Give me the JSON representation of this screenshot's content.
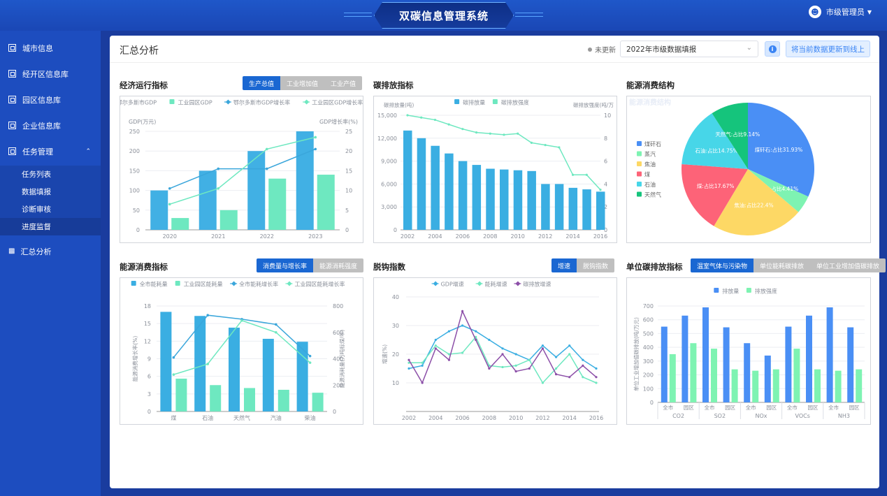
{
  "app": {
    "title": "双碳信息管理系统",
    "user": "市级管理员"
  },
  "sidebar": {
    "items": [
      {
        "label": "城市信息"
      },
      {
        "label": "经开区信息库"
      },
      {
        "label": "园区信息库"
      },
      {
        "label": "企业信息库"
      },
      {
        "label": "任务管理"
      },
      {
        "label": "汇总分析"
      }
    ],
    "subitems": [
      {
        "label": "任务列表"
      },
      {
        "label": "数据填报"
      },
      {
        "label": "诊断审核"
      },
      {
        "label": "进度监督"
      }
    ]
  },
  "header": {
    "title": "汇总分析",
    "status": "未更新",
    "select_value": "2022年市级数据填报",
    "sync_button": "将当前数据更新到线上",
    "info_icon": "info-icon"
  },
  "sections": {
    "economy": {
      "title": "经济运行指标",
      "tabs": [
        "生产总值",
        "工业增加值",
        "工业产值"
      ]
    },
    "carbon": {
      "title": "碳排放指标"
    },
    "structure": {
      "title": "能源消费结构"
    },
    "energy": {
      "title": "能源消费指标",
      "tabs": [
        "消费量与增长率",
        "能源消耗强度"
      ]
    },
    "decoupling": {
      "title": "脱钩指数",
      "tabs": [
        "增速",
        "脱钩指数"
      ]
    },
    "unit_emission": {
      "title": "单位碳排放指标",
      "tabs": [
        "温室气体与污染物",
        "单位能耗碳排放",
        "单位工业增加值碳排放"
      ]
    }
  },
  "chart_data": [
    {
      "id": "economy",
      "type": "bar",
      "categories": [
        "2020",
        "2021",
        "2022",
        "2023"
      ],
      "series": [
        {
          "name": "鄂尔多斯市GDP",
          "kind": "bar",
          "axis": "left",
          "color": "#41b0e4",
          "values": [
            100,
            150,
            200,
            250
          ]
        },
        {
          "name": "工业园区GDP",
          "kind": "bar",
          "axis": "left",
          "color": "#6ee8c0",
          "values": [
            30,
            50,
            130,
            140
          ]
        },
        {
          "name": "鄂尔多斯市GDP增长率",
          "kind": "line",
          "axis": "right",
          "color": "#3aa6db",
          "values": [
            10.5,
            15.5,
            15.5,
            20.5
          ]
        },
        {
          "name": "工业园区GDP增长率",
          "kind": "line",
          "axis": "right",
          "color": "#6ee8c0",
          "values": [
            6.5,
            10.5,
            20.5,
            23.5
          ]
        }
      ],
      "ylabel": "GDP(万元)",
      "ylim": [
        0,
        250
      ],
      "yticks": [
        0,
        50,
        100,
        150,
        200,
        250
      ],
      "y2label": "GDP增长率(%)",
      "y2lim": [
        0,
        25
      ],
      "y2ticks": [
        0,
        5,
        10,
        15,
        20,
        25
      ],
      "legend_position": "top"
    },
    {
      "id": "carbon",
      "type": "bar",
      "categories": [
        "2002",
        "2003",
        "2004",
        "2005",
        "2006",
        "2007",
        "2008",
        "2009",
        "2010",
        "2011",
        "2012",
        "2013",
        "2014",
        "2015",
        "2016"
      ],
      "xticks": [
        "2002",
        "2004",
        "2006",
        "2008",
        "2010",
        "2012",
        "2014",
        "2016"
      ],
      "series": [
        {
          "name": "碳排放量",
          "kind": "bar",
          "axis": "left",
          "color": "#3aaee2",
          "values": [
            13000,
            12000,
            11000,
            10000,
            9000,
            8500,
            8000,
            7900,
            7800,
            7700,
            6000,
            6000,
            5500,
            5300,
            5000
          ]
        },
        {
          "name": "碳排放强度",
          "kind": "line",
          "axis": "right",
          "color": "#6ee8c0",
          "values": [
            10,
            9.8,
            9.6,
            9.2,
            8.8,
            8.5,
            8.4,
            8.3,
            8.4,
            7.6,
            7.4,
            7.2,
            4.8,
            4.8,
            3.5
          ]
        }
      ],
      "ylabel": "碳排放量(吨)",
      "ylim": [
        0,
        15000
      ],
      "yticks": [
        0,
        3000,
        6000,
        9000,
        12000,
        15000
      ],
      "y2label": "碳排放强度(吨/万",
      "y2lim": [
        0,
        10
      ],
      "y2ticks": [
        0,
        2,
        4,
        6,
        8,
        10
      ],
      "legend_position": "top"
    },
    {
      "id": "structure",
      "type": "pie",
      "title": "能源消费结构",
      "series": [
        {
          "name": "煤矸石",
          "value": 31.93,
          "label": "煤矸石:占比31.93%",
          "color": "#4a8ff5"
        },
        {
          "name": "蒸汽",
          "value": 4.41,
          "label": "蒸汽:占比4.41%",
          "color": "#7ef3b2"
        },
        {
          "name": "焦油",
          "value": 22.4,
          "label": "焦油:占比22.4%",
          "color": "#fdd865"
        },
        {
          "name": "煤",
          "value": 17.67,
          "label": "煤:占比17.67%",
          "color": "#fd6378"
        },
        {
          "name": "石油",
          "value": 14.75,
          "label": "石油:占比14.75%",
          "color": "#47d6e8"
        },
        {
          "name": "天然气",
          "value": 9.14,
          "label": "天然气:占比9.14%",
          "color": "#15c47c"
        }
      ],
      "legend_position": "left"
    },
    {
      "id": "energy",
      "type": "bar",
      "categories": [
        "煤",
        "石油",
        "天然气",
        "汽油",
        "柴油"
      ],
      "series": [
        {
          "name": "全市能耗量",
          "kind": "bar",
          "axis": "left",
          "color": "#3aaee2",
          "values": [
            17,
            16.3,
            14.3,
            12.4,
            11.9
          ]
        },
        {
          "name": "工业园区能耗量",
          "kind": "bar",
          "axis": "left",
          "color": "#6ee8c0",
          "values": [
            5.6,
            4.5,
            4,
            3.7,
            3.2
          ]
        },
        {
          "name": "全市能耗增长率",
          "kind": "line",
          "axis": "right",
          "color": "#3aa6db",
          "values": [
            410,
            730,
            700,
            660,
            420
          ]
        },
        {
          "name": "工业园区能耗增长率",
          "kind": "line",
          "axis": "right",
          "color": "#6ee8c0",
          "values": [
            280,
            360,
            690,
            600,
            370
          ]
        }
      ],
      "ylabel": "能源消费增长率(%)",
      "ylim": [
        0,
        18
      ],
      "yticks": [
        0,
        3,
        6,
        9,
        12,
        15,
        18
      ],
      "y2label": "能源消耗量(万吨标煤/年)",
      "y2lim": [
        0,
        800
      ],
      "y2ticks": [
        0,
        200,
        400,
        600,
        800
      ],
      "legend_position": "top"
    },
    {
      "id": "decoupling",
      "type": "line",
      "x": [
        "2002",
        "2003",
        "2004",
        "2005",
        "2006",
        "2007",
        "2008",
        "2009",
        "2010",
        "2011",
        "2012",
        "2013",
        "2014",
        "2015",
        "2016"
      ],
      "xticks": [
        "2002",
        "2004",
        "2006",
        "2008",
        "2010",
        "2012",
        "2014",
        "2016"
      ],
      "series": [
        {
          "name": "GDP增速",
          "color": "#3aaee2",
          "values": [
            15,
            16,
            25,
            28,
            30,
            28,
            25,
            22,
            20,
            18,
            23,
            19,
            23,
            18,
            15
          ]
        },
        {
          "name": "能耗增速",
          "color": "#6ee8c0",
          "values": [
            17,
            17,
            23,
            20,
            20.5,
            26,
            16,
            15.5,
            16,
            18,
            10,
            15,
            20,
            12,
            10
          ]
        },
        {
          "name": "碳排放增速",
          "color": "#8c4fa8",
          "values": [
            18,
            10,
            22,
            18,
            35,
            25,
            15,
            20,
            14,
            15,
            22,
            13,
            12,
            16,
            12
          ]
        }
      ],
      "ylabel": "增速(%)",
      "ylim": [
        0,
        40
      ],
      "yticks": [
        10,
        20,
        30,
        40
      ],
      "legend_position": "top"
    },
    {
      "id": "unit_emission",
      "type": "bar",
      "categories": [
        "全市",
        "园区",
        "全市",
        "园区",
        "全市",
        "园区",
        "全市",
        "园区",
        "全市",
        "园区"
      ],
      "groups": [
        "CO2",
        "SO2",
        "NOx",
        "VOCs",
        "NH3"
      ],
      "series": [
        {
          "name": "排放量",
          "color": "#4a8ff5",
          "values": [
            550,
            630,
            690,
            545,
            430,
            340,
            550,
            630,
            690,
            545
          ]
        },
        {
          "name": "排放强度",
          "color": "#7ef3b2",
          "values": [
            350,
            430,
            390,
            240,
            230,
            240,
            390,
            240,
            230,
            240
          ]
        }
      ],
      "ylabel": "单位工业增加值碳排放(吨/万元)",
      "ylim": [
        0,
        700
      ],
      "yticks": [
        0,
        100,
        200,
        300,
        400,
        500,
        600,
        700
      ],
      "legend_position": "top"
    }
  ]
}
